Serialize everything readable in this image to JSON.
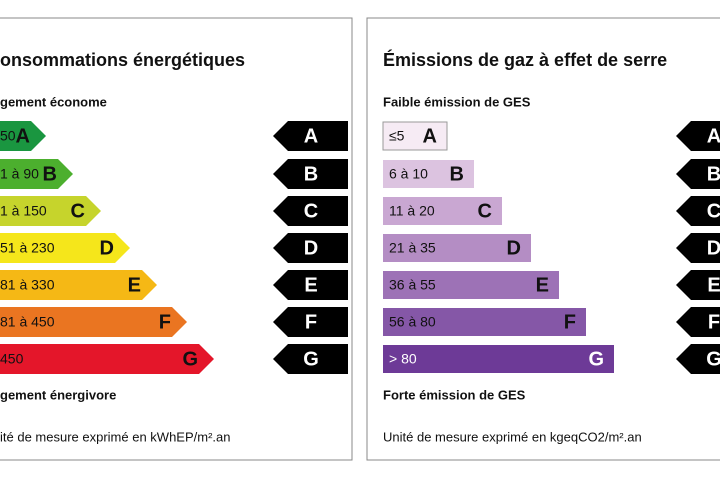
{
  "panels": [
    {
      "title": "onsommations énergétiques",
      "top_label": "gement économe",
      "bottom_label": "gement énergivore",
      "unit": "ité de mesure exprimé en kWhEP/m².an",
      "classes": [
        {
          "range": "50",
          "letter": "A",
          "color": "#1a9640"
        },
        {
          "range": "1 à 90",
          "letter": "B",
          "color": "#4caf2e"
        },
        {
          "range": "1 à 150",
          "letter": "C",
          "color": "#c6d42c"
        },
        {
          "range": "51 à 230",
          "letter": "D",
          "color": "#f5e61b"
        },
        {
          "range": "81 à 330",
          "letter": "E",
          "color": "#f5b815"
        },
        {
          "range": "81 à 450",
          "letter": "F",
          "color": "#ea7521"
        },
        {
          "range": "450",
          "letter": "G",
          "color": "#e4162a"
        }
      ],
      "scale": [
        "A",
        "B",
        "C",
        "D",
        "E",
        "F",
        "G"
      ]
    },
    {
      "title": "Émissions de gaz à effet de serre",
      "top_label": "Faible émission de GES",
      "bottom_label": "Forte émission de GES",
      "unit": "Unité de mesure exprimé en kgeqCO2/m².an",
      "classes": [
        {
          "range": "≤5",
          "letter": "A",
          "color": "#f6ebf4"
        },
        {
          "range": "6 à 10",
          "letter": "B",
          "color": "#dcc3e0"
        },
        {
          "range": "11 à 20",
          "letter": "C",
          "color": "#c9a7d2"
        },
        {
          "range": "21 à 35",
          "letter": "D",
          "color": "#b48dc4"
        },
        {
          "range": "36 à 55",
          "letter": "E",
          "color": "#9d72b6"
        },
        {
          "range": "56 à 80",
          "letter": "F",
          "color": "#8557a7"
        },
        {
          "range": "> 80",
          "letter": "G",
          "color": "#6d3a97"
        }
      ],
      "scale": [
        "A",
        "B",
        "C",
        "D",
        "E",
        "F",
        "G"
      ]
    }
  ]
}
